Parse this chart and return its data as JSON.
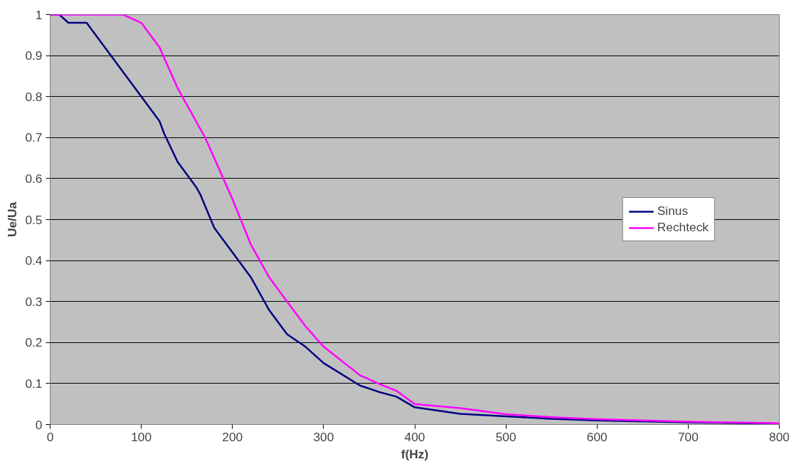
{
  "chart_data": {
    "type": "line",
    "xlabel": "f(Hz)",
    "ylabel": "Ue/Ua",
    "xlim": [
      0,
      800
    ],
    "xticks": [
      0,
      100,
      200,
      300,
      400,
      500,
      600,
      700,
      800
    ],
    "ylim": [
      0,
      1
    ],
    "yticks": [
      0,
      0.1,
      0.2,
      0.3,
      0.4,
      0.5,
      0.6,
      0.7,
      0.8,
      0.9,
      1
    ],
    "grid": "y",
    "legend": "right",
    "marker": "none",
    "line_style": "solid",
    "series": [
      {
        "name": "Sinus",
        "color": "#000080",
        "x": [
          0,
          10,
          20,
          40,
          120,
          125,
          140,
          160,
          165,
          180,
          220,
          240,
          260,
          280,
          300,
          340,
          360,
          380,
          400,
          450,
          500,
          550,
          600,
          700,
          800
        ],
        "values": [
          1,
          1,
          0.98,
          0.98,
          0.74,
          0.71,
          0.64,
          0.58,
          0.56,
          0.48,
          0.36,
          0.28,
          0.22,
          0.19,
          0.15,
          0.095,
          0.08,
          0.068,
          0.042,
          0.026,
          0.02,
          0.014,
          0.01,
          0.005,
          0.002
        ]
      },
      {
        "name": "Rechteck",
        "color": "#ff00ff",
        "x": [
          0,
          80,
          100,
          120,
          140,
          160,
          170,
          180,
          200,
          220,
          240,
          260,
          280,
          300,
          340,
          360,
          380,
          400,
          450,
          500,
          550,
          600,
          700,
          800
        ],
        "values": [
          1,
          1,
          0.98,
          0.92,
          0.82,
          0.74,
          0.7,
          0.65,
          0.55,
          0.44,
          0.36,
          0.3,
          0.24,
          0.19,
          0.12,
          0.1,
          0.082,
          0.05,
          0.04,
          0.025,
          0.018,
          0.013,
          0.007,
          0.003
        ]
      }
    ]
  }
}
